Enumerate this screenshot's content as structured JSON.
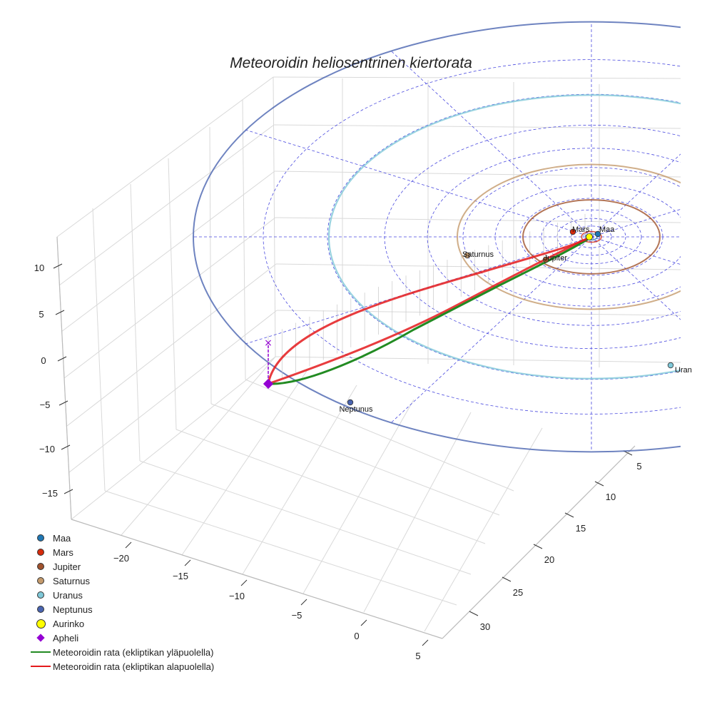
{
  "chart_data": {
    "type": "3d-line",
    "title": "Meteoroidin heliosentrinen kiertorata",
    "axes": {
      "x_ticks": [
        "−20",
        "−15",
        "−10",
        "−5",
        "0",
        "5"
      ],
      "y_ticks": [
        "5",
        "10",
        "15",
        "20",
        "25",
        "30"
      ],
      "z_ticks": [
        "10",
        "5",
        "0",
        "−5",
        "−10",
        "−15"
      ],
      "z_range": [
        -17,
        12
      ]
    },
    "planets": [
      {
        "name": "Maa",
        "label": "Maa",
        "orbit_radius_au": 1.0,
        "color": "#1f77b4"
      },
      {
        "name": "Mars",
        "label": "Mars",
        "orbit_radius_au": 1.52,
        "color": "#d62b0b"
      },
      {
        "name": "Jupiter",
        "label": "Jupiter",
        "orbit_radius_au": 5.2,
        "color": "#a0522d"
      },
      {
        "name": "Saturnus",
        "label": "Saturnus",
        "orbit_radius_au": 9.58,
        "color": "#c49a6c"
      },
      {
        "name": "Uranus",
        "label": "Uran",
        "orbit_radius_au": 19.2,
        "color": "#7fc8d8"
      },
      {
        "name": "Neptunus",
        "label": "Neptunus",
        "orbit_radius_au": 30.05,
        "color": "#4a64b0"
      }
    ],
    "sun": {
      "name": "Aurinko",
      "color": "#ffff00"
    },
    "aphelion": {
      "name": "Apheli",
      "color": "#9400d3"
    },
    "series": [
      {
        "name": "Meteoroidin rata (ekliptikan yläpuolella)",
        "color": "#228b22"
      },
      {
        "name": "Meteoroidin rata (ekliptikan alapuolella)",
        "color": "#e41a1c"
      }
    ],
    "legend": [
      {
        "label": "Maa",
        "kind": "dot",
        "color": "#1f77b4"
      },
      {
        "label": "Mars",
        "kind": "dot",
        "color": "#d62b0b"
      },
      {
        "label": "Jupiter",
        "kind": "dot",
        "color": "#a0522d"
      },
      {
        "label": "Saturnus",
        "kind": "dot",
        "color": "#c49a6c"
      },
      {
        "label": "Uranus",
        "kind": "dot",
        "color": "#7fc8d8"
      },
      {
        "label": "Neptunus",
        "kind": "dot",
        "color": "#4a64b0"
      },
      {
        "label": "Aurinko",
        "kind": "sun",
        "color": "#ffff00"
      },
      {
        "label": "Apheli",
        "kind": "diamond",
        "color": "#9400d3"
      },
      {
        "label": "Meteoroidin rata (ekliptikan yläpuolella)",
        "kind": "line",
        "color": "#228b22"
      },
      {
        "label": "Meteoroidin rata (ekliptikan alapuolella)",
        "kind": "line",
        "color": "#e41a1c"
      }
    ],
    "legend_position": "bottom-left"
  }
}
